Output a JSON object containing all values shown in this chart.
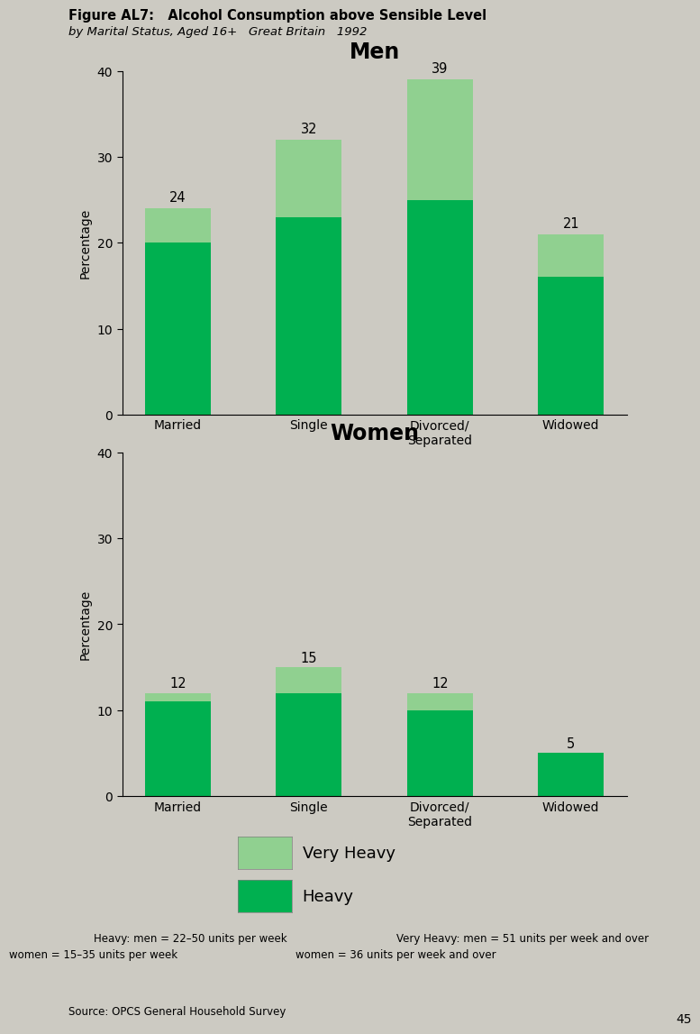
{
  "fig_title_bold": "Figure AL7:   Alcohol Consumption above Sensible Level",
  "fig_subtitle": "by Marital Status, Aged 16+   Great Britain   1992",
  "background_color": "#cccac2",
  "categories": [
    "Married",
    "Single",
    "Divorced/\nSeparated",
    "Widowed"
  ],
  "men": {
    "title": "Men",
    "total": [
      24,
      32,
      39,
      21
    ],
    "heavy": [
      20,
      23,
      25,
      16
    ],
    "very_heavy": [
      4,
      9,
      14,
      5
    ]
  },
  "women": {
    "title": "Women",
    "total": [
      12,
      15,
      12,
      5
    ],
    "heavy": [
      11,
      12,
      10,
      5
    ],
    "very_heavy": [
      1,
      3,
      2,
      0
    ]
  },
  "heavy_color": "#00b050",
  "very_heavy_color": "#90d090",
  "ylabel": "Percentage",
  "ylim": [
    0,
    40
  ],
  "yticks": [
    0,
    10,
    20,
    30,
    40
  ],
  "bar_width": 0.5,
  "legend_very_heavy": "Very Heavy",
  "legend_heavy": "Heavy",
  "footnote_left_line1": "Heavy: men = 22–50 units per week",
  "footnote_left_line2": "women = 15–35 units per week",
  "footnote_right_line1": "Very Heavy: men = 51 units per week and over",
  "footnote_right_line2": "women = 36 units per week and over",
  "source": "Source: OPCS General Household Survey",
  "page_number": "45"
}
